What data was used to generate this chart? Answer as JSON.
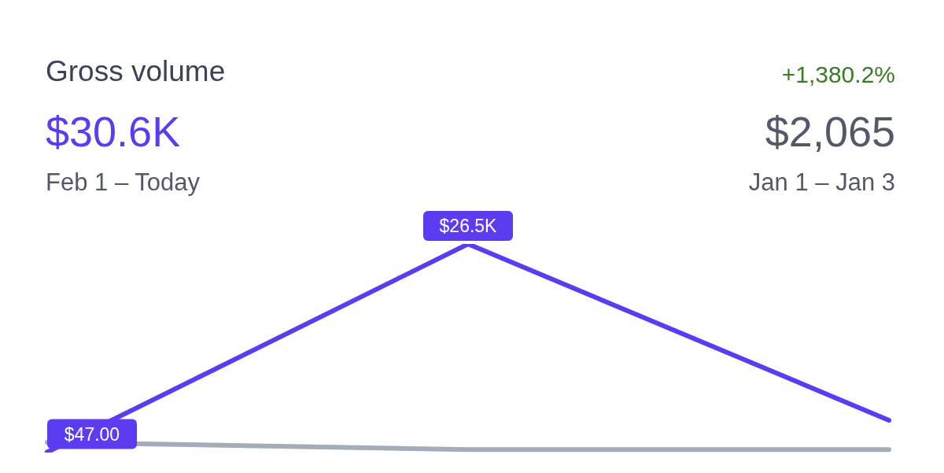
{
  "chart_data": {
    "type": "line",
    "title": "Gross volume",
    "categories": [
      null,
      null,
      null
    ],
    "annotations": [
      "$30.6K",
      "Feb 1 – Today",
      "+1,380.2%",
      "$2,065",
      "Jan 1 – Jan 3"
    ],
    "series": [
      {
        "color": "#a3acb9",
        "values": [
          1300,
          380,
          385
        ]
      },
      {
        "color": "#5c3cf0",
        "values": [
          47,
          26500,
          4100
        ],
        "value_labels": [
          "$47.00",
          "$26.5K",
          null
        ]
      }
    ],
    "legend": false,
    "grid": false,
    "line_style": "solid"
  }
}
